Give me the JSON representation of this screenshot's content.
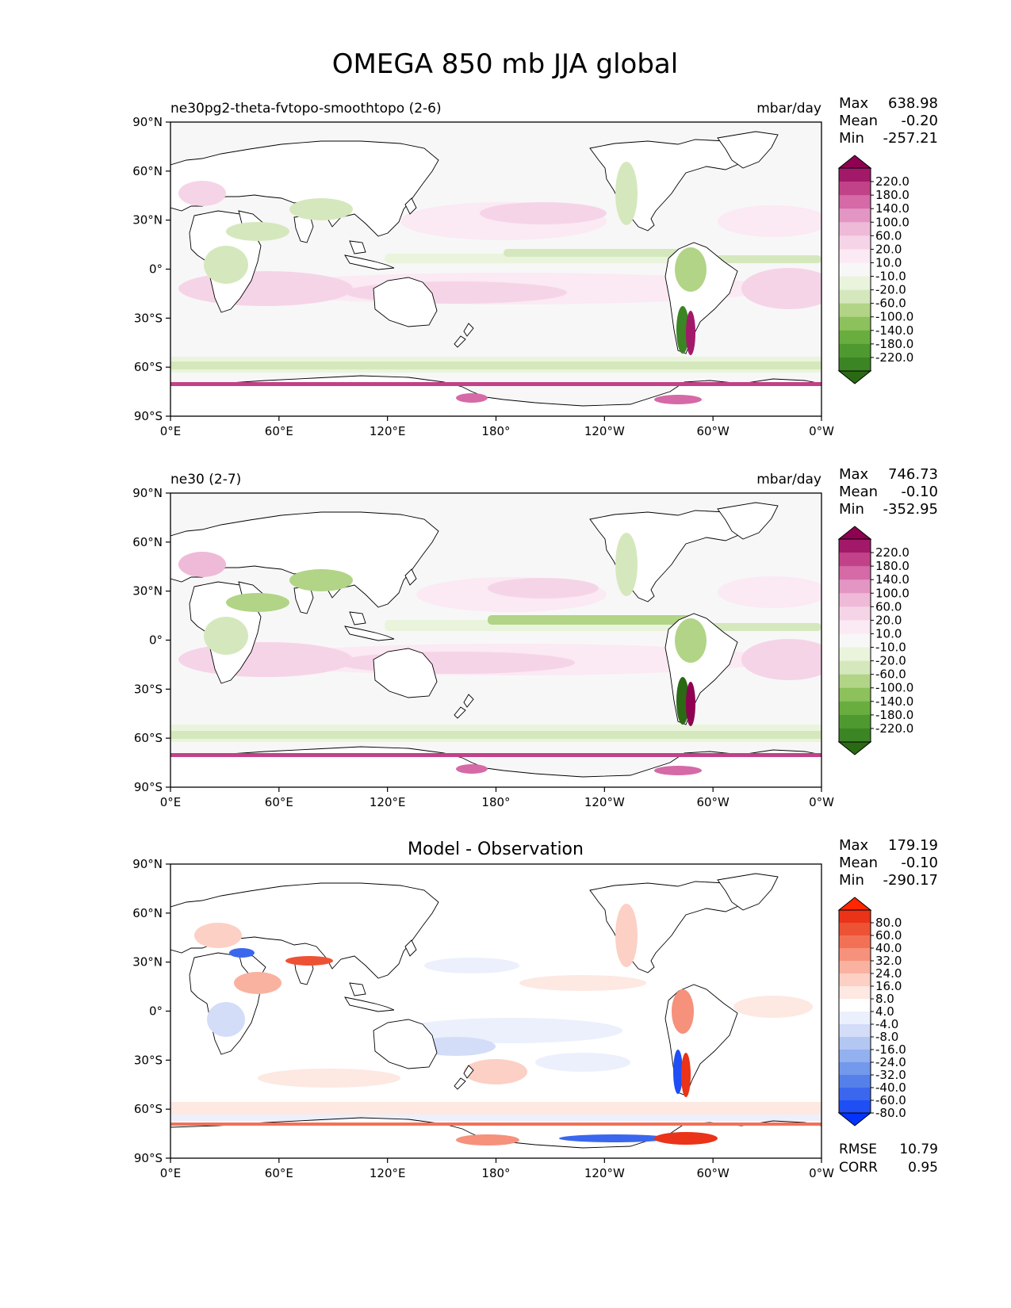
{
  "figure_title": "OMEGA 850 mb JJA global",
  "x_ticks": [
    "0°E",
    "60°E",
    "120°E",
    "180°",
    "120°W",
    "60°W",
    "0°W"
  ],
  "y_ticks": [
    "90°N",
    "60°N",
    "30°N",
    "0°",
    "30°S",
    "60°S",
    "90°S"
  ],
  "stat_labels": {
    "max": "Max",
    "mean": "Mean",
    "min": "Min",
    "rmse": "RMSE",
    "corr": "CORR"
  },
  "colors": {
    "test_levels": [
      "#2b6a14",
      "#3b8524",
      "#4f9a30",
      "#69ad3f",
      "#8cc15b",
      "#b1d486",
      "#d5e8bd",
      "#eaf4dc",
      "#f7f7f7",
      "#fbe9f3",
      "#f6d4e8",
      "#eebad8",
      "#e396c3",
      "#d56aa7",
      "#c14288",
      "#a3196a",
      "#8e0152"
    ],
    "diff_levels": [
      "#0433ff",
      "#1f4ef5",
      "#3a67ee",
      "#5580ea",
      "#7399ec",
      "#93b0ef",
      "#b3c7f3",
      "#d3ddf8",
      "#ecf0fc",
      "#ffffff",
      "#fde8e2",
      "#fcd0c4",
      "#f9b2a0",
      "#f6917b",
      "#f27156",
      "#ee5234",
      "#ea3318",
      "#ff2600"
    ],
    "land": "#ffffff",
    "coast": "#000000"
  },
  "panels": [
    {
      "id": "test",
      "left_title": "ne30pg2-theta-fvtopo-smoothtopo (2-6)",
      "center_title": "",
      "units": "mbar/day",
      "stats": {
        "max": "638.98",
        "mean": "-0.20",
        "min": "-257.21"
      },
      "colorbar_levels": [
        "220.0",
        "180.0",
        "140.0",
        "100.0",
        "60.0",
        "20.0",
        "10.0",
        "-10.0",
        "-20.0",
        "-60.0",
        "-100.0",
        "-140.0",
        "-180.0",
        "-220.0"
      ]
    },
    {
      "id": "reference",
      "left_title": "ne30 (2-7)",
      "center_title": "",
      "units": "mbar/day",
      "stats": {
        "max": "746.73",
        "mean": "-0.10",
        "min": "-352.95"
      },
      "colorbar_levels": [
        "220.0",
        "180.0",
        "140.0",
        "100.0",
        "60.0",
        "20.0",
        "10.0",
        "-10.0",
        "-20.0",
        "-60.0",
        "-100.0",
        "-140.0",
        "-180.0",
        "-220.0"
      ]
    },
    {
      "id": "difference",
      "left_title": "",
      "center_title": "Model - Observation",
      "units": "",
      "stats": {
        "max": "179.19",
        "mean": "-0.10",
        "min": "-290.17",
        "rmse": "10.79",
        "corr": "0.95"
      },
      "colorbar_levels": [
        "80.0",
        "60.0",
        "40.0",
        "32.0",
        "24.0",
        "16.0",
        "8.0",
        "4.0",
        "-4.0",
        "-8.0",
        "-16.0",
        "-24.0",
        "-32.0",
        "-40.0",
        "-60.0",
        "-80.0"
      ]
    }
  ],
  "chart_data": [
    {
      "type": "heatmap",
      "title": "ne30pg2-theta-fvtopo-smoothtopo (2-6)",
      "variable": "OMEGA 850 mb JJA global",
      "units": "mbar/day",
      "xlim": [
        0,
        360
      ],
      "ylim": [
        -90,
        90
      ],
      "max": 638.98,
      "mean": -0.2,
      "min": -257.21,
      "levels": [
        -220,
        -180,
        -140,
        -100,
        -60,
        -20,
        -10,
        10,
        20,
        60,
        100,
        140,
        180,
        220
      ]
    },
    {
      "type": "heatmap",
      "title": "ne30 (2-7)",
      "variable": "OMEGA 850 mb JJA global",
      "units": "mbar/day",
      "xlim": [
        0,
        360
      ],
      "ylim": [
        -90,
        90
      ],
      "max": 746.73,
      "mean": -0.1,
      "min": -352.95,
      "levels": [
        -220,
        -180,
        -140,
        -100,
        -60,
        -20,
        -10,
        10,
        20,
        60,
        100,
        140,
        180,
        220
      ]
    },
    {
      "type": "heatmap",
      "title": "Model - Observation",
      "xlim": [
        0,
        360
      ],
      "ylim": [
        -90,
        90
      ],
      "max": 179.19,
      "mean": -0.1,
      "min": -290.17,
      "rmse": 10.79,
      "corr": 0.95,
      "levels": [
        -80,
        -60,
        -40,
        -32,
        -24,
        -16,
        -8,
        -4,
        4,
        8,
        16,
        24,
        32,
        40,
        60,
        80
      ]
    }
  ]
}
